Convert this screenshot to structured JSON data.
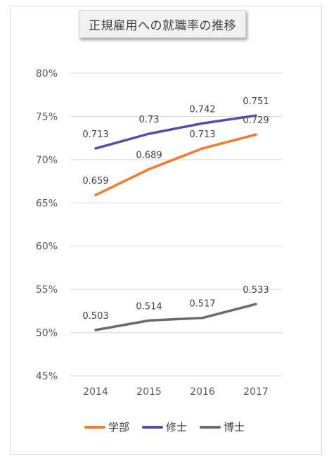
{
  "chart_data": {
    "type": "line",
    "title": "正規雇用への就職率の推移",
    "categories": [
      "2014",
      "2015",
      "2016",
      "2017"
    ],
    "ylim": [
      0.45,
      0.8
    ],
    "yticks": [
      "80%",
      "75%",
      "70%",
      "65%",
      "60%",
      "55%",
      "50%",
      "45%"
    ],
    "ytick_values": [
      0.8,
      0.75,
      0.7,
      0.65,
      0.6,
      0.55,
      0.5,
      0.45
    ],
    "grid": true,
    "legend_position": "bottom",
    "series": [
      {
        "name": "学部",
        "color": "#ed7d31",
        "values": [
          0.659,
          0.689,
          0.713,
          0.729
        ],
        "labels": [
          "0.659",
          "0.689",
          "0.713",
          "0.729"
        ]
      },
      {
        "name": "修士",
        "color": "#4f4fb0",
        "values": [
          0.713,
          0.73,
          0.742,
          0.751
        ],
        "labels": [
          "0.713",
          "0.73",
          "0.742",
          "0.751"
        ]
      },
      {
        "name": "博士",
        "color": "#6b6b6b",
        "values": [
          0.503,
          0.514,
          0.517,
          0.533
        ],
        "labels": [
          "0.503",
          "0.514",
          "0.517",
          "0.533"
        ]
      }
    ]
  }
}
